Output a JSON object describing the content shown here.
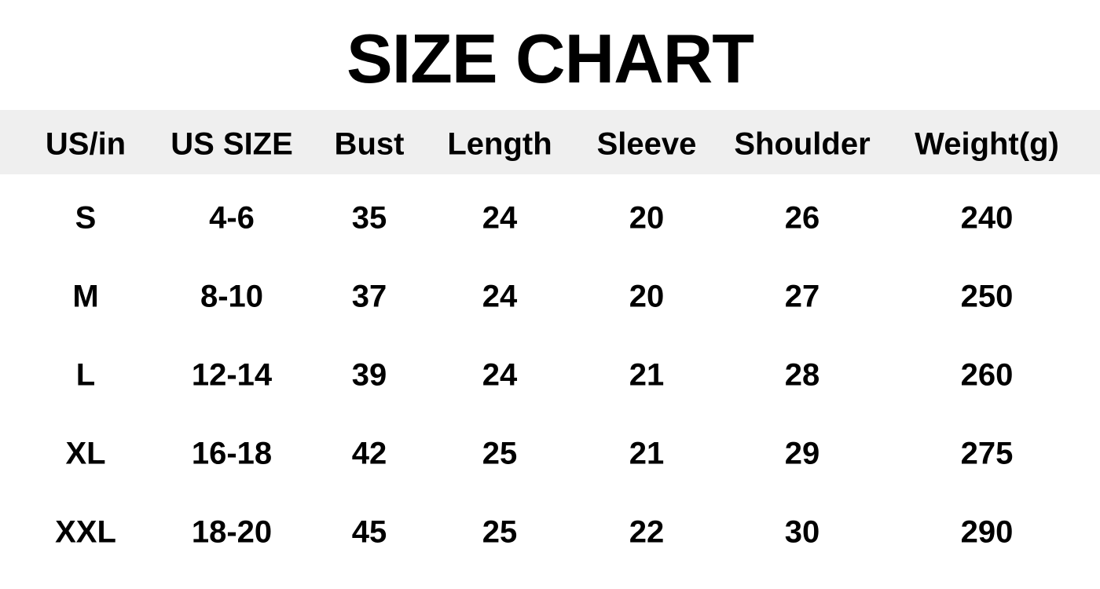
{
  "title": "SIZE CHART",
  "table": {
    "headers": [
      "US/in",
      "US SIZE",
      "Bust",
      "Length",
      "Sleeve",
      "Shoulder",
      "Weight(g)"
    ],
    "rows": [
      [
        "S",
        "4-6",
        "35",
        "24",
        "20",
        "26",
        "240"
      ],
      [
        "M",
        "8-10",
        "37",
        "24",
        "20",
        "27",
        "250"
      ],
      [
        "L",
        "12-14",
        "39",
        "24",
        "21",
        "28",
        "260"
      ],
      [
        "XL",
        "16-18",
        "42",
        "25",
        "21",
        "29",
        "275"
      ],
      [
        "XXL",
        "18-20",
        "45",
        "25",
        "22",
        "30",
        "290"
      ]
    ]
  },
  "colors": {
    "header_background": "#efefef",
    "text": "#000000"
  }
}
